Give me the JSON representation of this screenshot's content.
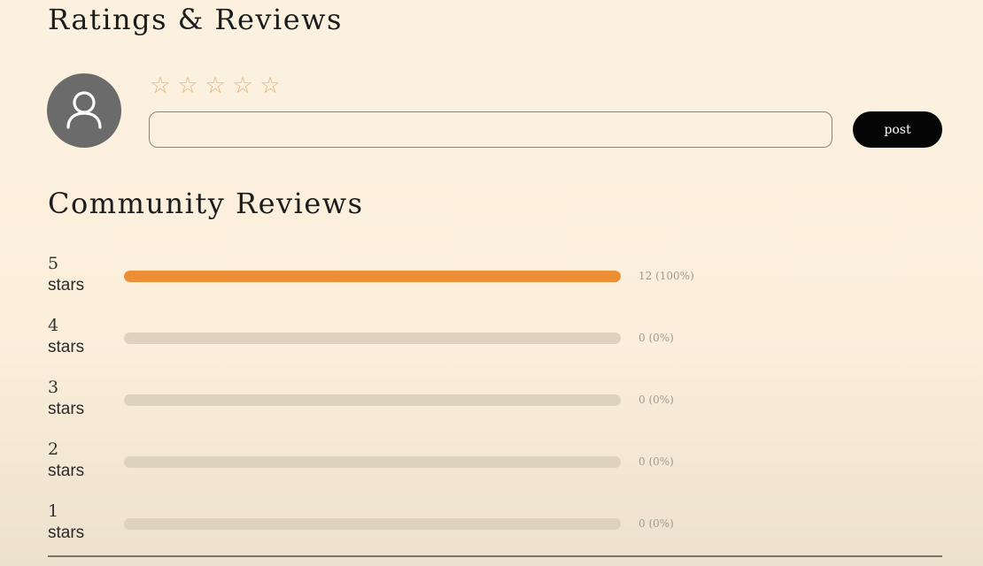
{
  "header": {
    "title": "Ratings & Reviews"
  },
  "composer": {
    "avatar_icon": "user-icon",
    "star_icon": "star-outline-icon",
    "stars": [
      "☆",
      "☆",
      "☆",
      "☆",
      "☆"
    ],
    "input_value": "",
    "input_placeholder": "",
    "post_label": "post"
  },
  "community": {
    "title": "Community Reviews",
    "rows": [
      {
        "stars": "5",
        "unit": "stars",
        "count_text": "12 (100%)",
        "fraction": 1.0
      },
      {
        "stars": "4",
        "unit": "stars",
        "count_text": "0 (0%)",
        "fraction": 0.0
      },
      {
        "stars": "3",
        "unit": "stars",
        "count_text": "0 (0%)",
        "fraction": 0.0
      },
      {
        "stars": "2",
        "unit": "stars",
        "count_text": "0 (0%)",
        "fraction": 0.0
      },
      {
        "stars": "1",
        "unit": "stars",
        "count_text": "0 (0%)",
        "fraction": 0.0
      }
    ]
  },
  "colors": {
    "accent": "#ec8e36",
    "track": "#ddd2bd",
    "button": "#050505",
    "star": "#e2b27a",
    "avatar": "#6b6b6b"
  }
}
